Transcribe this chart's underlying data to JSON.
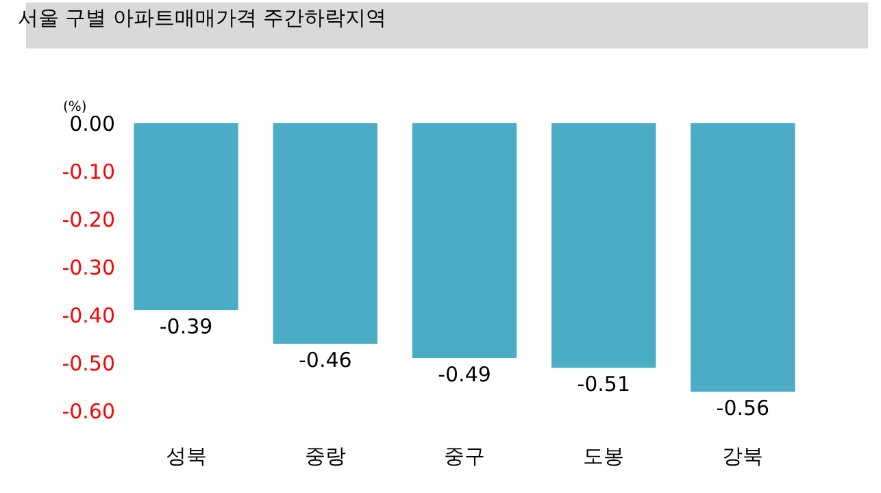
{
  "chart_data": {
    "type": "bar",
    "title": "서울 구별 아파트매매가격 주간하락지역",
    "ylabel": "(%)",
    "categories": [
      "성북",
      "중랑",
      "중구",
      "도봉",
      "강북"
    ],
    "values": [
      -0.39,
      -0.46,
      -0.49,
      -0.51,
      -0.56
    ],
    "color": "#4bacc6",
    "ylim": [
      -0.6,
      0
    ],
    "yticks": [
      {
        "value": 0,
        "label": "0.00"
      },
      {
        "value": -0.1,
        "label": "-0.10"
      },
      {
        "value": -0.2,
        "label": "-0.20"
      },
      {
        "value": -0.3,
        "label": "-0.30"
      },
      {
        "value": -0.4,
        "label": "-0.40"
      },
      {
        "value": -0.5,
        "label": "-0.50"
      },
      {
        "value": -0.6,
        "label": "-0.60"
      }
    ],
    "grid": false,
    "legend": false,
    "data_labels": true
  }
}
